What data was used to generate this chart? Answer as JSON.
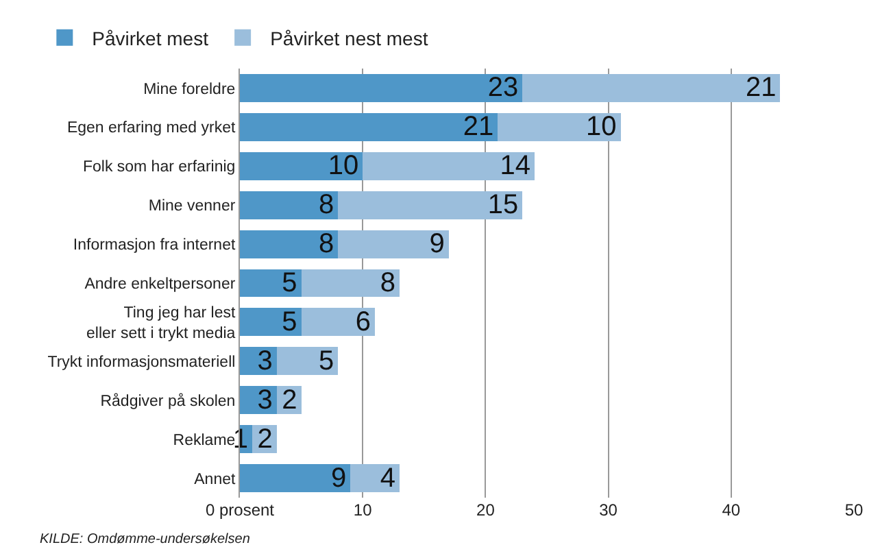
{
  "chart_data": {
    "type": "bar",
    "orientation": "horizontal",
    "stacked": true,
    "data_labels": true,
    "legend": "top left",
    "grid": "x",
    "categories": [
      "Mine foreldre",
      "Egen erfaring med yrket",
      "Folk som har erfarinig",
      "Mine venner",
      "Informasjon fra internet",
      "Andre enkeltpersoner",
      "Ting jeg har lest\neller sett i trykt media",
      "Trykt informasjonsmateriell",
      "Rådgiver på skolen",
      "Reklame",
      "Annet"
    ],
    "series": [
      {
        "name": "Påvirket mest",
        "color": "#4f97c8",
        "values": [
          23,
          21,
          10,
          8,
          8,
          5,
          5,
          3,
          3,
          1,
          9
        ]
      },
      {
        "name": "Påvirket nest mest",
        "color": "#9bbedc",
        "values": [
          21,
          10,
          14,
          15,
          9,
          8,
          6,
          5,
          2,
          2,
          4
        ]
      }
    ],
    "xlim": [
      0,
      50
    ],
    "xticks": [
      {
        "value": 0,
        "label": "0 prosent"
      },
      10,
      20,
      30,
      40,
      50
    ],
    "annotations": [
      "KILDE: Omdømme-undersøkelsen"
    ]
  }
}
